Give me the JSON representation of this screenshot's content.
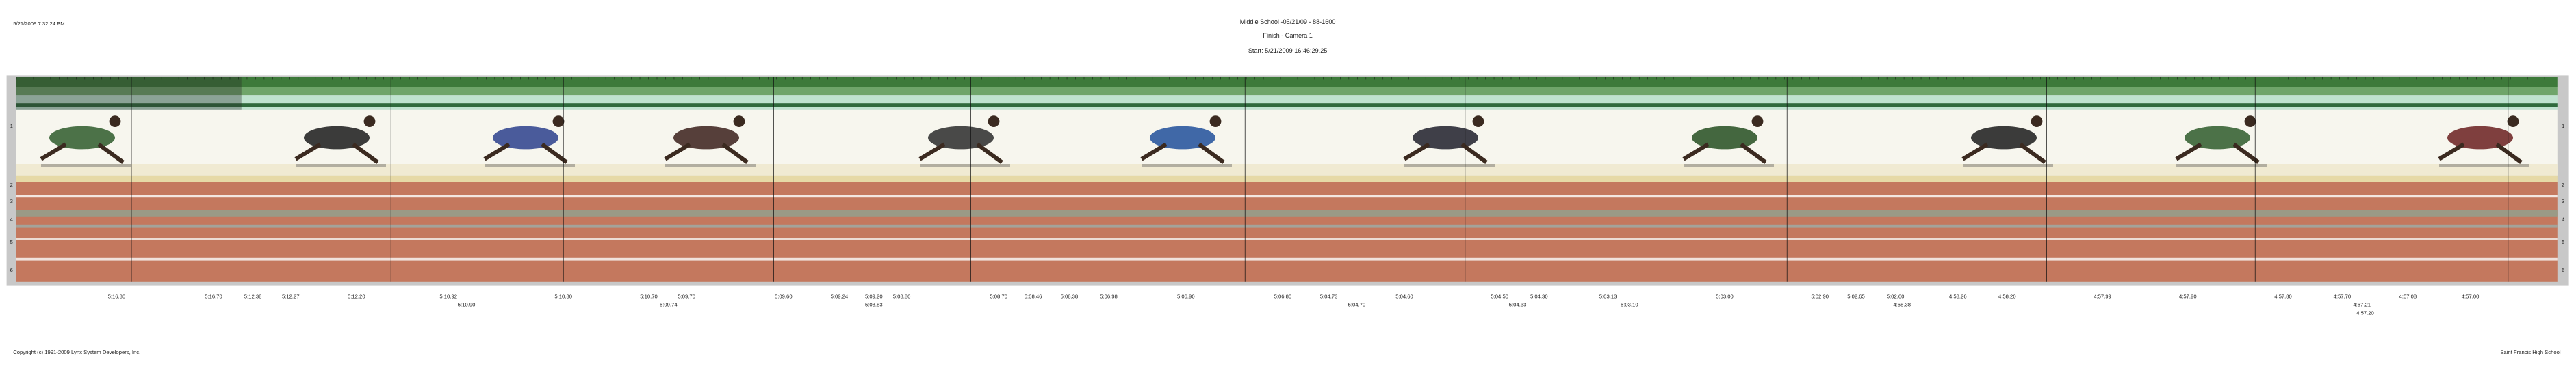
{
  "header": {
    "timestamp": "5/21/2009 7:32:24 PM",
    "title": "Middle School -05/21/09 - 88-1600",
    "subtitle": "Finish - Camera 1",
    "start": "Start: 5/21/2009 16:46:29.25"
  },
  "lanes": [
    "1",
    "2",
    "3",
    "4",
    "5",
    "6"
  ],
  "times": [
    "5:16.80",
    "5:16.70",
    "5:12.38",
    "5:12.27",
    "5:12.20",
    "5:10.92",
    "5:10.90",
    "5:10.80",
    "5:10.70",
    "5:09.70",
    "5:09.74",
    "5:09.60",
    "5:09.24",
    "5:09.20",
    "5:08.80",
    "5:08.83",
    "5:08.70",
    "5:08.46",
    "5:08.38",
    "5:06.98",
    "5:06.90",
    "5:06.80",
    "5:04.73",
    "5:04.70",
    "5:04.60",
    "5:04.50",
    "5:04.30",
    "5:04.33",
    "5:03.13",
    "5:03.10",
    "5:03.00",
    "5:02.90",
    "5:02.65",
    "5:02.60",
    "4:58.38",
    "4:58.26",
    "4:58.20",
    "4:57.99",
    "4:57.90",
    "4:57.80",
    "4:57.70",
    "4:57.21",
    "4:57.20",
    "4:57.08",
    "4:57.00"
  ],
  "footer": {
    "copyright": "Copyright (c) 1991-2009 Lynx System Developers, Inc.",
    "school": "Saint Francis High School"
  }
}
